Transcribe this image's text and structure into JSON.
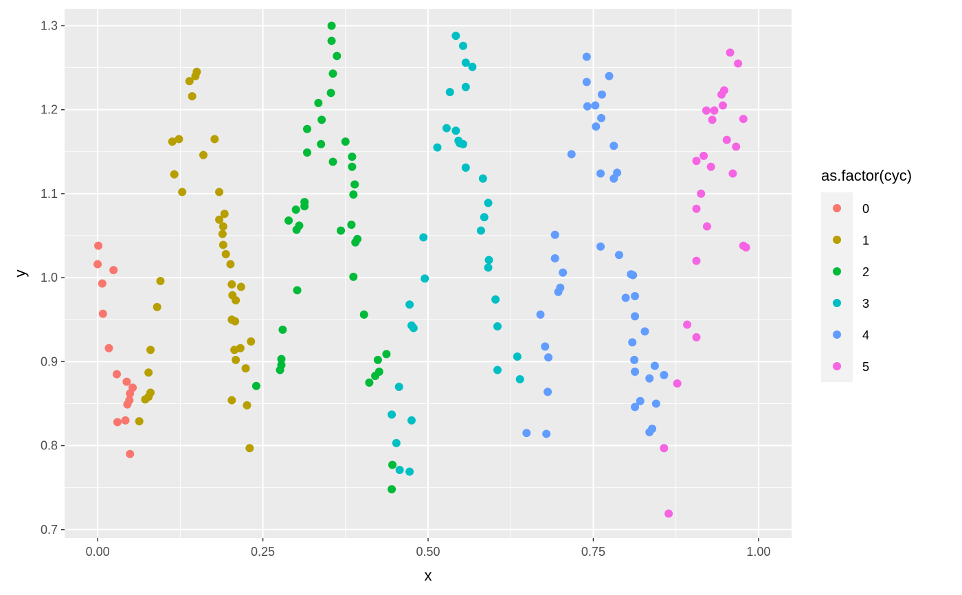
{
  "chart_data": {
    "type": "scatter",
    "xlabel": "x",
    "ylabel": "y",
    "xlim": [
      -0.05,
      1.05
    ],
    "ylim": [
      0.69,
      1.32
    ],
    "x_ticks": [
      0.0,
      0.25,
      0.5,
      0.75,
      1.0
    ],
    "x_tick_labels": [
      "0.00",
      "0.25",
      "0.50",
      "0.75",
      "1.00"
    ],
    "y_ticks": [
      0.7,
      0.8,
      0.9,
      1.0,
      1.1,
      1.2,
      1.3
    ],
    "y_tick_labels": [
      "0.7",
      "0.8",
      "0.9",
      "1.0",
      "1.1",
      "1.2",
      "1.3"
    ],
    "grid": true,
    "legend_title": "as.factor(cyc)",
    "legend_position": "right",
    "series": [
      {
        "name": "0",
        "color": "#F8766D",
        "points": [
          [
            0.001,
            1.038
          ],
          [
            0.0,
            1.016
          ],
          [
            0.007,
            0.993
          ],
          [
            0.008,
            0.957
          ],
          [
            0.024,
            1.009
          ],
          [
            0.017,
            0.916
          ],
          [
            0.029,
            0.885
          ],
          [
            0.044,
            0.876
          ],
          [
            0.053,
            0.869
          ],
          [
            0.049,
            0.862
          ],
          [
            0.048,
            0.854
          ],
          [
            0.045,
            0.849
          ],
          [
            0.03,
            0.828
          ],
          [
            0.042,
            0.83
          ],
          [
            0.049,
            0.79
          ]
        ]
      },
      {
        "name": "1",
        "color": "#B79F00",
        "points": [
          [
            0.15,
            1.245
          ],
          [
            0.148,
            1.24
          ],
          [
            0.139,
            1.234
          ],
          [
            0.143,
            1.216
          ],
          [
            0.113,
            1.162
          ],
          [
            0.123,
            1.165
          ],
          [
            0.116,
            1.123
          ],
          [
            0.128,
            1.102
          ],
          [
            0.177,
            1.165
          ],
          [
            0.16,
            1.146
          ],
          [
            0.184,
            1.102
          ],
          [
            0.192,
            1.076
          ],
          [
            0.184,
            1.069
          ],
          [
            0.19,
            1.061
          ],
          [
            0.189,
            1.052
          ],
          [
            0.19,
            1.039
          ],
          [
            0.194,
            1.028
          ],
          [
            0.201,
            1.016
          ],
          [
            0.095,
            0.996
          ],
          [
            0.09,
            0.965
          ],
          [
            0.08,
            0.914
          ],
          [
            0.077,
            0.887
          ],
          [
            0.08,
            0.863
          ],
          [
            0.077,
            0.858
          ],
          [
            0.072,
            0.855
          ],
          [
            0.063,
            0.829
          ],
          [
            0.203,
            0.992
          ],
          [
            0.217,
            0.989
          ],
          [
            0.204,
            0.979
          ],
          [
            0.209,
            0.973
          ],
          [
            0.203,
            0.95
          ],
          [
            0.208,
            0.948
          ],
          [
            0.232,
            0.924
          ],
          [
            0.216,
            0.916
          ],
          [
            0.207,
            0.914
          ],
          [
            0.209,
            0.902
          ],
          [
            0.224,
            0.892
          ],
          [
            0.203,
            0.854
          ],
          [
            0.226,
            0.848
          ],
          [
            0.23,
            0.797
          ]
        ]
      },
      {
        "name": "2",
        "color": "#00BA38",
        "points": [
          [
            0.354,
            1.3
          ],
          [
            0.354,
            1.282
          ],
          [
            0.362,
            1.264
          ],
          [
            0.356,
            1.243
          ],
          [
            0.353,
            1.22
          ],
          [
            0.334,
            1.208
          ],
          [
            0.339,
            1.188
          ],
          [
            0.317,
            1.177
          ],
          [
            0.338,
            1.159
          ],
          [
            0.317,
            1.149
          ],
          [
            0.375,
            1.162
          ],
          [
            0.385,
            1.144
          ],
          [
            0.356,
            1.138
          ],
          [
            0.385,
            1.132
          ],
          [
            0.389,
            1.111
          ],
          [
            0.387,
            1.099
          ],
          [
            0.313,
            1.09
          ],
          [
            0.313,
            1.085
          ],
          [
            0.3,
            1.081
          ],
          [
            0.289,
            1.068
          ],
          [
            0.305,
            1.062
          ],
          [
            0.301,
            1.057
          ],
          [
            0.384,
            1.063
          ],
          [
            0.368,
            1.056
          ],
          [
            0.393,
            1.046
          ],
          [
            0.39,
            1.042
          ],
          [
            0.387,
            1.001
          ],
          [
            0.302,
            0.985
          ],
          [
            0.403,
            0.956
          ],
          [
            0.28,
            0.938
          ],
          [
            0.437,
            0.909
          ],
          [
            0.278,
            0.903
          ],
          [
            0.424,
            0.902
          ],
          [
            0.278,
            0.896
          ],
          [
            0.276,
            0.89
          ],
          [
            0.426,
            0.888
          ],
          [
            0.42,
            0.883
          ],
          [
            0.411,
            0.875
          ],
          [
            0.24,
            0.871
          ],
          [
            0.446,
            0.777
          ],
          [
            0.445,
            0.748
          ]
        ]
      },
      {
        "name": "3",
        "color": "#00BFC4",
        "points": [
          [
            0.542,
            1.288
          ],
          [
            0.553,
            1.276
          ],
          [
            0.557,
            1.256
          ],
          [
            0.567,
            1.251
          ],
          [
            0.557,
            1.227
          ],
          [
            0.533,
            1.221
          ],
          [
            0.528,
            1.178
          ],
          [
            0.542,
            1.175
          ],
          [
            0.546,
            1.163
          ],
          [
            0.548,
            1.16
          ],
          [
            0.553,
            1.159
          ],
          [
            0.514,
            1.155
          ],
          [
            0.557,
            1.131
          ],
          [
            0.583,
            1.118
          ],
          [
            0.591,
            1.089
          ],
          [
            0.585,
            1.072
          ],
          [
            0.58,
            1.056
          ],
          [
            0.493,
            1.048
          ],
          [
            0.592,
            1.021
          ],
          [
            0.591,
            1.012
          ],
          [
            0.495,
            0.999
          ],
          [
            0.602,
            0.974
          ],
          [
            0.472,
            0.968
          ],
          [
            0.475,
            0.943
          ],
          [
            0.478,
            0.94
          ],
          [
            0.605,
            0.942
          ],
          [
            0.635,
            0.906
          ],
          [
            0.605,
            0.89
          ],
          [
            0.639,
            0.879
          ],
          [
            0.456,
            0.87
          ],
          [
            0.445,
            0.837
          ],
          [
            0.475,
            0.83
          ],
          [
            0.452,
            0.803
          ],
          [
            0.457,
            0.771
          ],
          [
            0.472,
            0.769
          ]
        ]
      },
      {
        "name": "4",
        "color": "#619CFF",
        "points": [
          [
            0.74,
            1.263
          ],
          [
            0.774,
            1.24
          ],
          [
            0.74,
            1.233
          ],
          [
            0.763,
            1.218
          ],
          [
            0.741,
            1.204
          ],
          [
            0.753,
            1.205
          ],
          [
            0.762,
            1.19
          ],
          [
            0.754,
            1.18
          ],
          [
            0.781,
            1.157
          ],
          [
            0.717,
            1.147
          ],
          [
            0.761,
            1.124
          ],
          [
            0.786,
            1.125
          ],
          [
            0.781,
            1.118
          ],
          [
            0.692,
            1.051
          ],
          [
            0.761,
            1.037
          ],
          [
            0.789,
            1.027
          ],
          [
            0.692,
            1.023
          ],
          [
            0.704,
            1.006
          ],
          [
            0.807,
            1.004
          ],
          [
            0.81,
            1.003
          ],
          [
            0.7,
            0.988
          ],
          [
            0.697,
            0.983
          ],
          [
            0.813,
            0.978
          ],
          [
            0.799,
            0.976
          ],
          [
            0.67,
            0.956
          ],
          [
            0.813,
            0.954
          ],
          [
            0.828,
            0.936
          ],
          [
            0.809,
            0.923
          ],
          [
            0.677,
            0.918
          ],
          [
            0.682,
            0.905
          ],
          [
            0.812,
            0.902
          ],
          [
            0.843,
            0.895
          ],
          [
            0.813,
            0.888
          ],
          [
            0.857,
            0.884
          ],
          [
            0.835,
            0.88
          ],
          [
            0.681,
            0.864
          ],
          [
            0.821,
            0.853
          ],
          [
            0.845,
            0.85
          ],
          [
            0.813,
            0.846
          ],
          [
            0.839,
            0.82
          ],
          [
            0.835,
            0.816
          ],
          [
            0.649,
            0.815
          ],
          [
            0.679,
            0.814
          ]
        ]
      },
      {
        "name": "5",
        "color": "#F564E3",
        "points": [
          [
            0.957,
            1.268
          ],
          [
            0.969,
            1.255
          ],
          [
            0.948,
            1.223
          ],
          [
            0.944,
            1.218
          ],
          [
            0.946,
            1.205
          ],
          [
            0.933,
            1.199
          ],
          [
            0.921,
            1.199
          ],
          [
            0.977,
            1.189
          ],
          [
            0.93,
            1.188
          ],
          [
            0.952,
            1.164
          ],
          [
            0.966,
            1.156
          ],
          [
            0.917,
            1.145
          ],
          [
            0.906,
            1.139
          ],
          [
            0.928,
            1.132
          ],
          [
            0.961,
            1.124
          ],
          [
            0.913,
            1.1
          ],
          [
            0.906,
            1.082
          ],
          [
            0.922,
            1.061
          ],
          [
            0.977,
            1.038
          ],
          [
            0.981,
            1.036
          ],
          [
            0.906,
            1.02
          ],
          [
            0.892,
            0.944
          ],
          [
            0.906,
            0.929
          ],
          [
            0.877,
            0.874
          ],
          [
            0.857,
            0.797
          ],
          [
            0.864,
            0.719
          ]
        ]
      }
    ]
  }
}
